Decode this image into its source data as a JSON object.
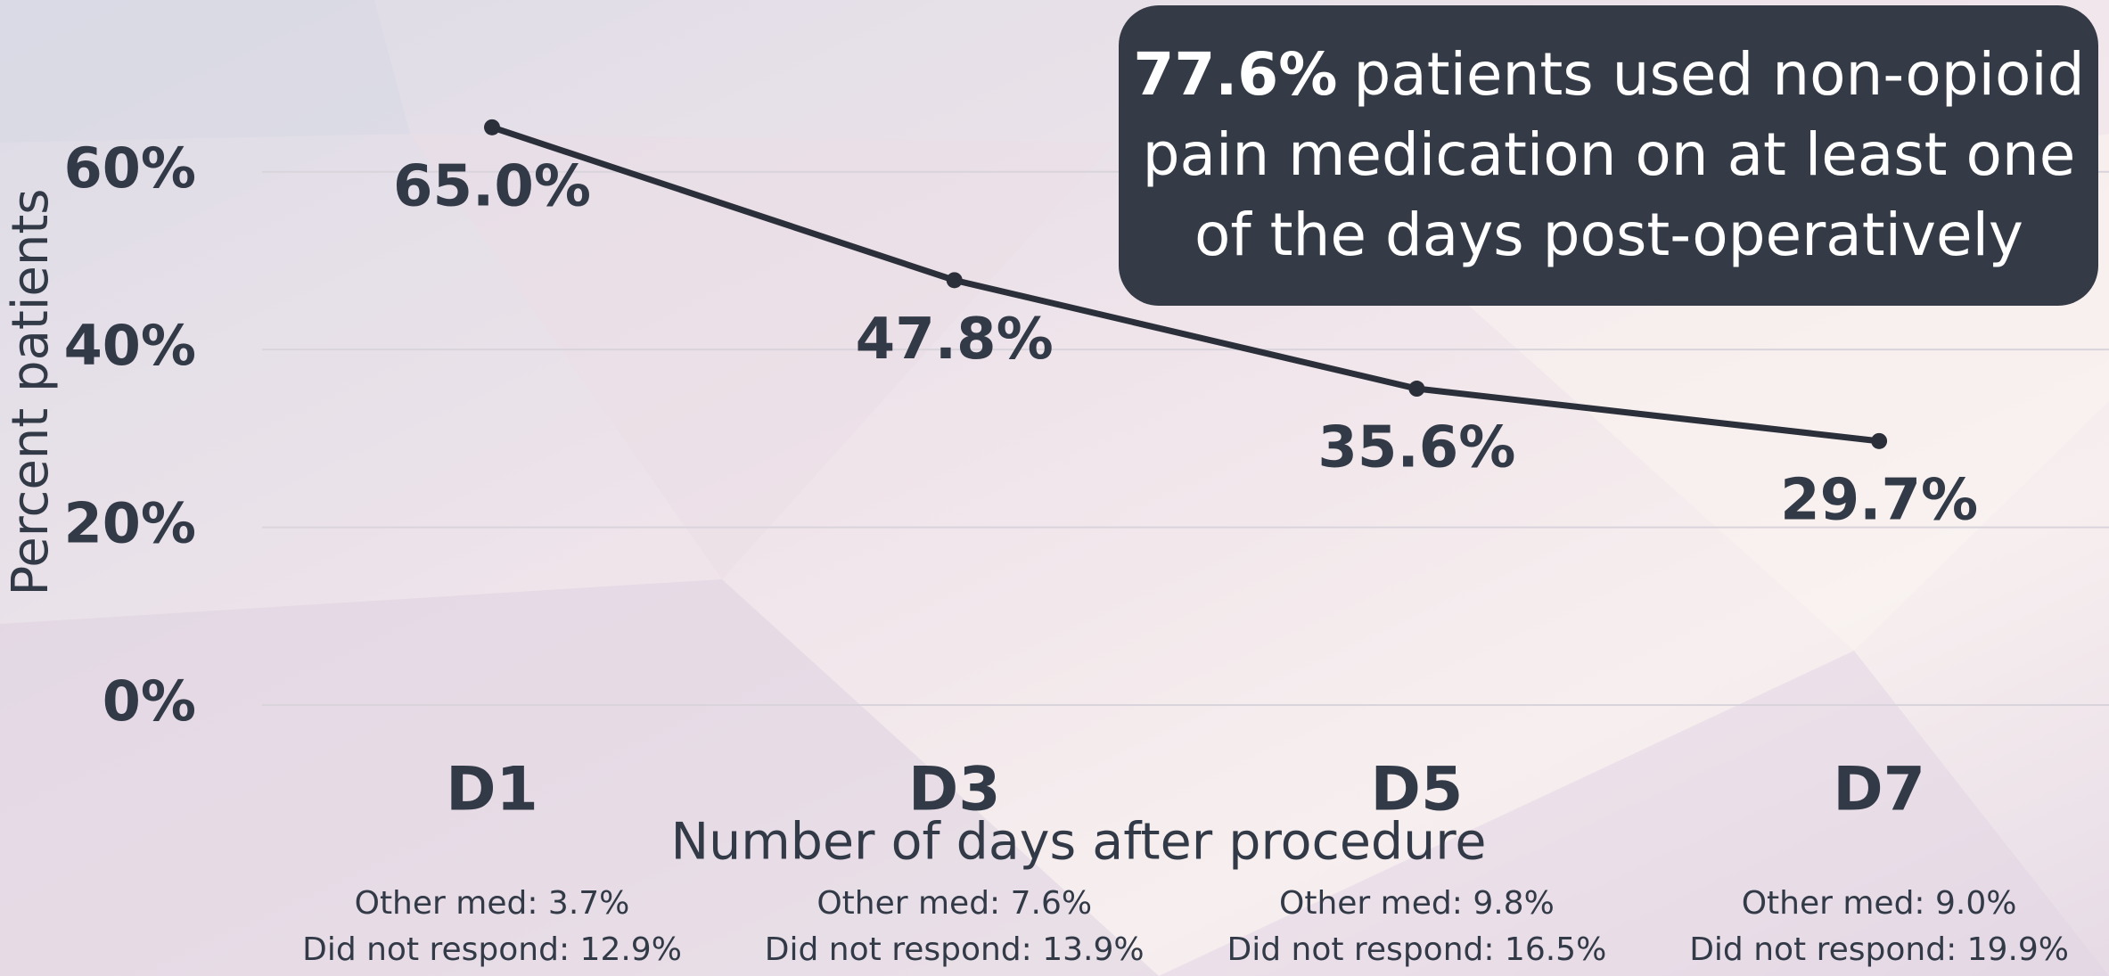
{
  "chart_data": {
    "type": "line",
    "y_label": "Percent patients",
    "x_label": "Number of days after procedure",
    "categories": [
      "D1",
      "D3",
      "D5",
      "D7"
    ],
    "values": [
      65.0,
      47.8,
      35.6,
      29.7
    ],
    "value_labels": [
      "65.0%",
      "47.8%",
      "35.6%",
      "29.7%"
    ],
    "color": "#2b2f3a",
    "ylim": [
      0,
      70
    ],
    "yticks": [
      {
        "value": 0,
        "label": "0%"
      },
      {
        "value": 20,
        "label": "20%"
      },
      {
        "value": 40,
        "label": "40%"
      },
      {
        "value": 60,
        "label": "60%"
      }
    ],
    "grid": true,
    "notes": [
      [
        "Other med: 3.7%",
        "Did not respond: 12.9%"
      ],
      [
        "Other med: 7.6%",
        "Did not respond: 13.9%"
      ],
      [
        "Other med: 9.8%",
        "Did not respond: 16.5%"
      ],
      [
        "Other med: 9.0%",
        "Did not respond: 19.9%"
      ]
    ],
    "annotation": {
      "highlight": "77.6%",
      "lines": [
        "patients used non-opioid",
        "pain medication on at least one",
        "of the days post-operatively"
      ]
    }
  }
}
